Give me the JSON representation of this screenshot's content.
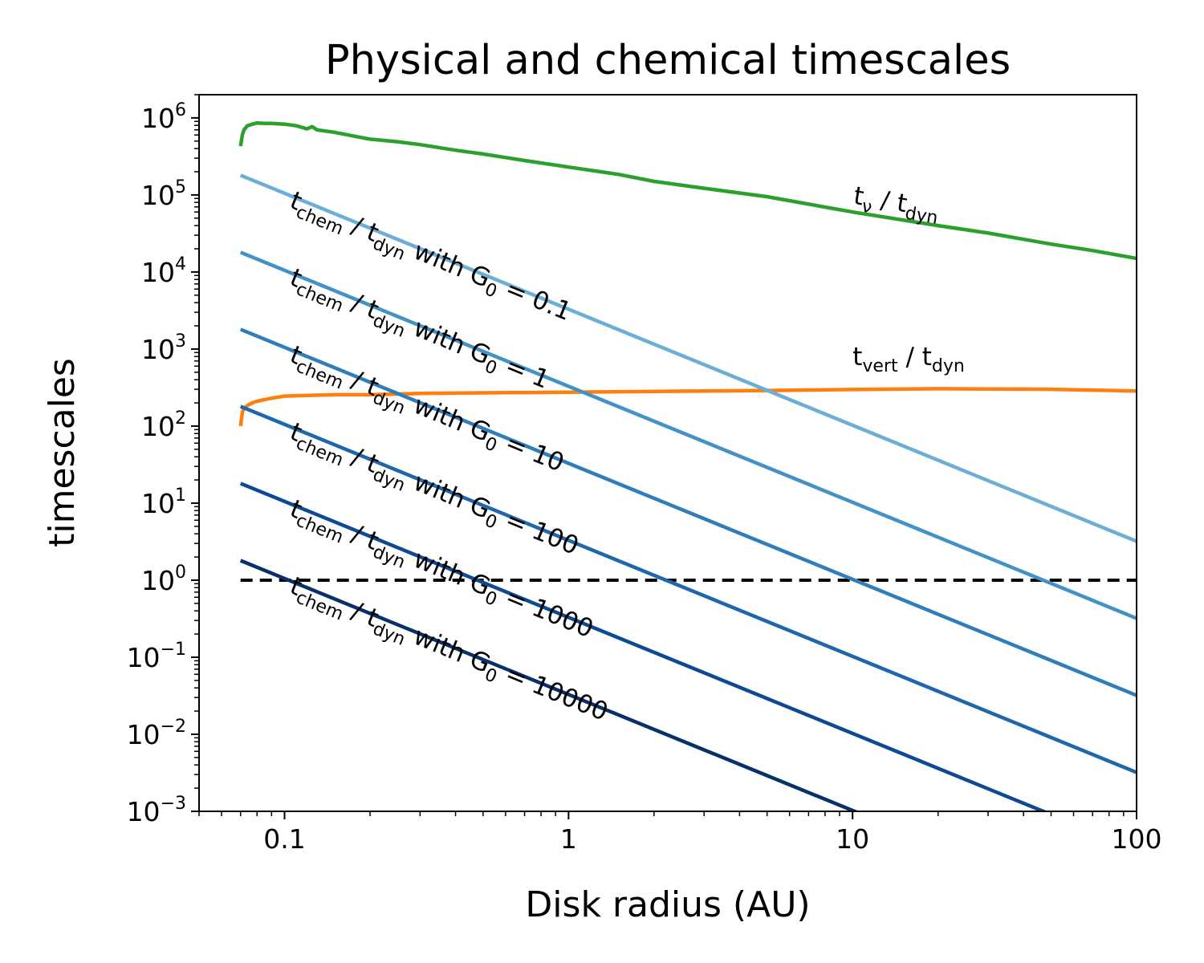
{
  "chart_data": {
    "type": "line",
    "title": "Physical and chemical timescales",
    "xlabel": "Disk radius (AU)",
    "ylabel": "timescales",
    "xscale": "log",
    "yscale": "log",
    "xlim": [
      0.05,
      100
    ],
    "ylim": [
      0.001,
      2000000
    ],
    "grid": false,
    "x_ticks": [
      {
        "value": 0.1,
        "label": "0.1"
      },
      {
        "value": 1,
        "label": "1"
      },
      {
        "value": 10,
        "label": "10"
      },
      {
        "value": 100,
        "label": "100"
      }
    ],
    "y_ticks": [
      {
        "value": 0.001,
        "base": "10",
        "exp": "−3"
      },
      {
        "value": 0.01,
        "base": "10",
        "exp": "−2"
      },
      {
        "value": 0.1,
        "base": "10",
        "exp": "−1"
      },
      {
        "value": 1,
        "base": "10",
        "exp": "0"
      },
      {
        "value": 10,
        "base": "10",
        "exp": "1"
      },
      {
        "value": 100,
        "base": "10",
        "exp": "2"
      },
      {
        "value": 1000,
        "base": "10",
        "exp": "3"
      },
      {
        "value": 10000,
        "base": "10",
        "exp": "4"
      },
      {
        "value": 100000,
        "base": "10",
        "exp": "5"
      },
      {
        "value": 1000000,
        "base": "10",
        "exp": "6"
      }
    ],
    "reference_line": {
      "y": 1,
      "x_range": [
        0.07,
        100
      ],
      "style": "dashed",
      "color": "#000000"
    },
    "series": [
      {
        "color": "#2ca02c",
        "x": [
          0.07,
          0.071,
          0.072,
          0.074,
          0.077,
          0.08,
          0.085,
          0.09,
          0.1,
          0.11,
          0.12,
          0.125,
          0.13,
          0.15,
          0.2,
          0.25,
          0.3,
          0.4,
          0.5,
          0.7,
          1,
          1.5,
          2,
          3,
          5,
          10,
          20,
          30,
          50,
          70,
          100
        ],
        "y": [
          430000,
          600000,
          700000,
          790000,
          830000,
          860000,
          850000,
          850000,
          830000,
          790000,
          720000,
          770000,
          700000,
          650000,
          530000,
          490000,
          450000,
          380000,
          340000,
          280000,
          230000,
          185000,
          150000,
          122000,
          95000,
          60000,
          40000,
          32000,
          23000,
          19000,
          15000
        ],
        "label": {
          "main": "t",
          "sub": "ν",
          "mid": " / t",
          "sub2": "dyn",
          "at_x": 10,
          "at_y": 58000,
          "offset_y": -12
        }
      },
      {
        "color": "#ff7f0e",
        "x": [
          0.07,
          0.071,
          0.072,
          0.074,
          0.077,
          0.08,
          0.09,
          0.1,
          0.12,
          0.15,
          0.2,
          0.3,
          0.5,
          0.7,
          1,
          2,
          5,
          10,
          20,
          30,
          50,
          100
        ],
        "y": [
          100,
          150,
          170,
          185,
          200,
          210,
          230,
          245,
          250,
          255,
          255,
          265,
          270,
          272,
          275,
          282,
          290,
          298,
          305,
          303,
          300,
          285
        ],
        "label": {
          "main": "t",
          "sub": "vert",
          "mid": " / t",
          "sub2": "dyn",
          "at_x": 10,
          "at_y": 300,
          "offset_y": -30
        }
      },
      {
        "color": "#6baed6",
        "x": [
          0.07,
          100
        ],
        "y": [
          180000,
          3.2
        ],
        "label": {
          "main": "t",
          "sub": "chem",
          "mid": " / t",
          "sub2": "dyn",
          "tail": " with G",
          "sub3": "0",
          "end": " = 0.1"
        }
      },
      {
        "color": "#4292c6",
        "x": [
          0.07,
          100
        ],
        "y": [
          18000,
          0.32
        ],
        "label": {
          "main": "t",
          "sub": "chem",
          "mid": " / t",
          "sub2": "dyn",
          "tail": " with G",
          "sub3": "0",
          "end": " = 1"
        }
      },
      {
        "color": "#2f7ebc",
        "x": [
          0.07,
          100
        ],
        "y": [
          1800,
          0.032
        ],
        "label": {
          "main": "t",
          "sub": "chem",
          "mid": " / t",
          "sub2": "dyn",
          "tail": " with G",
          "sub3": "0",
          "end": " = 10"
        }
      },
      {
        "color": "#1f67ad",
        "x": [
          0.07,
          100
        ],
        "y": [
          180,
          0.0032
        ],
        "label": {
          "main": "t",
          "sub": "chem",
          "mid": " / t",
          "sub2": "dyn",
          "tail": " with G",
          "sub3": "0",
          "end": " = 100"
        }
      },
      {
        "color": "#0c4a94",
        "x": [
          0.07,
          100
        ],
        "y": [
          18,
          0.00032
        ],
        "label": {
          "main": "t",
          "sub": "chem",
          "mid": " / t",
          "sub2": "dyn",
          "tail": " with G",
          "sub3": "0",
          "end": " = 1000"
        }
      },
      {
        "color": "#08306b",
        "x": [
          0.07,
          100
        ],
        "y": [
          1.8,
          3.2e-05
        ],
        "label": {
          "main": "t",
          "sub": "chem",
          "mid": " / t",
          "sub2": "dyn",
          "tail": " with G",
          "sub3": "0",
          "end": " = 10000"
        }
      }
    ]
  }
}
